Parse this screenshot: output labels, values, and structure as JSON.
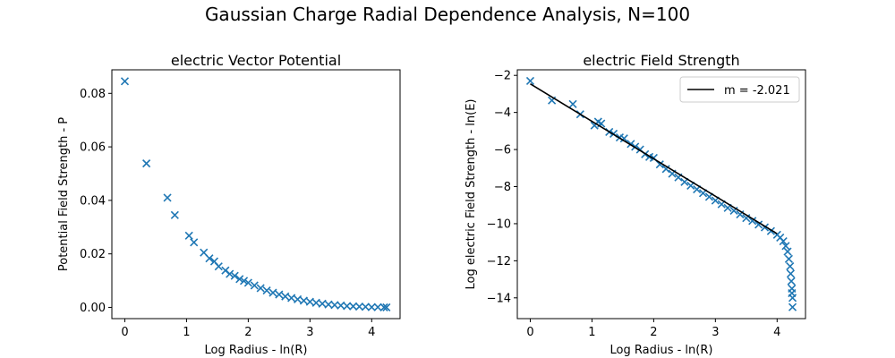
{
  "figure": {
    "title": "Gaussian Charge Radial Dependence Analysis, N=100"
  },
  "chart_data": [
    {
      "type": "scatter",
      "title": "electric Vector Potential",
      "xlabel": "Log Radius - ln(R)",
      "ylabel": "Potential Field  Strength - P",
      "xlim": [
        -0.21,
        4.46
      ],
      "ylim": [
        -0.0042,
        0.0888
      ],
      "xticks": [
        0,
        1,
        2,
        3,
        4
      ],
      "xtick_labels": [
        "0",
        "1",
        "2",
        "3",
        "4"
      ],
      "yticks": [
        0.0,
        0.02,
        0.04,
        0.06,
        0.08
      ],
      "ytick_labels": [
        "0.00",
        "0.02",
        "0.04",
        "0.06",
        "0.08"
      ],
      "grid": false,
      "marker": "x",
      "color": "#1f77b4",
      "series": [
        {
          "x": [
            0.0,
            0.35,
            0.69,
            0.81,
            1.04,
            1.12,
            1.28,
            1.37,
            1.45,
            1.52,
            1.63,
            1.7,
            1.78,
            1.86,
            1.93,
            2.0,
            2.1,
            2.2,
            2.3,
            2.4,
            2.5,
            2.6,
            2.7,
            2.8,
            2.9,
            3.0,
            3.1,
            3.2,
            3.3,
            3.4,
            3.5,
            3.6,
            3.7,
            3.8,
            3.9,
            4.0,
            4.1,
            4.2,
            4.24
          ],
          "y": [
            0.0845,
            0.0538,
            0.041,
            0.0345,
            0.0268,
            0.0243,
            0.0205,
            0.0183,
            0.0172,
            0.0153,
            0.0138,
            0.0125,
            0.0118,
            0.0106,
            0.0099,
            0.0092,
            0.0082,
            0.0072,
            0.0063,
            0.0055,
            0.0048,
            0.0041,
            0.0035,
            0.003,
            0.0025,
            0.0021,
            0.0017,
            0.0014,
            0.0011,
            0.0009,
            0.0007,
            0.0005,
            0.0004,
            0.0003,
            0.0002,
            0.0001,
            0.0001,
            0.0,
            0.0
          ]
        }
      ]
    },
    {
      "type": "scatter",
      "title": "electric Field Strength",
      "xlabel": "Log Radius - ln(R)",
      "ylabel": "Log electric Field Strength - ln(E)",
      "xlim": [
        -0.21,
        4.46
      ],
      "ylim": [
        -15.12,
        -1.7
      ],
      "xticks": [
        0,
        1,
        2,
        3,
        4
      ],
      "xtick_labels": [
        "0",
        "1",
        "2",
        "3",
        "4"
      ],
      "yticks": [
        -14,
        -12,
        -10,
        -8,
        -6,
        -4,
        -2
      ],
      "ytick_labels": [
        "−14",
        "−12",
        "−10",
        "−8",
        "−6",
        "−4",
        "−2"
      ],
      "grid": false,
      "marker": "x",
      "color": "#1f77b4",
      "legend_position": "top-right",
      "series": [
        {
          "x": [
            0.0,
            0.35,
            0.69,
            0.81,
            1.04,
            1.1,
            1.15,
            1.28,
            1.35,
            1.45,
            1.52,
            1.63,
            1.7,
            1.78,
            1.86,
            1.93,
            2.0,
            2.1,
            2.2,
            2.3,
            2.4,
            2.5,
            2.6,
            2.7,
            2.8,
            2.9,
            3.0,
            3.1,
            3.2,
            3.3,
            3.4,
            3.5,
            3.6,
            3.7,
            3.8,
            3.9,
            4.0,
            4.05,
            4.1,
            4.14,
            4.17,
            4.19,
            4.21,
            4.22,
            4.23,
            4.24,
            4.24,
            4.25,
            4.25
          ],
          "y": [
            -2.3,
            -3.35,
            -3.55,
            -4.1,
            -4.7,
            -4.5,
            -4.6,
            -5.05,
            -5.15,
            -5.35,
            -5.4,
            -5.7,
            -5.85,
            -6.0,
            -6.25,
            -6.4,
            -6.45,
            -6.8,
            -7.05,
            -7.3,
            -7.5,
            -7.75,
            -7.95,
            -8.15,
            -8.35,
            -8.55,
            -8.75,
            -8.95,
            -9.15,
            -9.3,
            -9.5,
            -9.7,
            -9.85,
            -10.05,
            -10.2,
            -10.4,
            -10.6,
            -10.75,
            -10.95,
            -11.2,
            -11.5,
            -11.9,
            -12.3,
            -12.7,
            -13.1,
            -13.5,
            -13.75,
            -14.0,
            -14.5
          ]
        },
        {
          "name": "m = -2.021",
          "type": "line",
          "color": "#000000",
          "x": [
            0.0,
            4.0
          ],
          "y": [
            -2.46,
            -10.54
          ]
        }
      ]
    }
  ]
}
